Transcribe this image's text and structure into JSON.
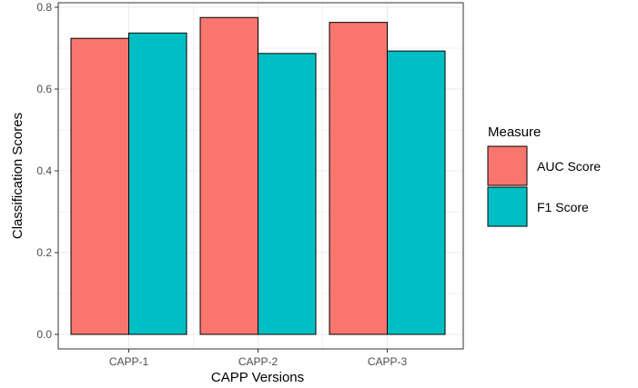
{
  "chart_data": {
    "type": "bar",
    "categories": [
      "CAPP-1",
      "CAPP-2",
      "CAPP-3"
    ],
    "series": [
      {
        "name": "AUC Score",
        "values": [
          0.724,
          0.775,
          0.763
        ],
        "color": "#F8766D"
      },
      {
        "name": "F1 Score",
        "values": [
          0.737,
          0.687,
          0.693
        ],
        "color": "#00BFC4"
      }
    ],
    "xlabel": "CAPP Versions",
    "ylabel": "Classification Scores",
    "ylim": [
      0,
      0.8
    ],
    "yticks": [
      0.0,
      0.2,
      0.4,
      0.6,
      0.8
    ],
    "ytick_labels": [
      "0.0",
      "0.2",
      "0.4",
      "0.6",
      "0.8"
    ],
    "grid": true,
    "legend_title": "Measure",
    "legend_position": "right"
  }
}
